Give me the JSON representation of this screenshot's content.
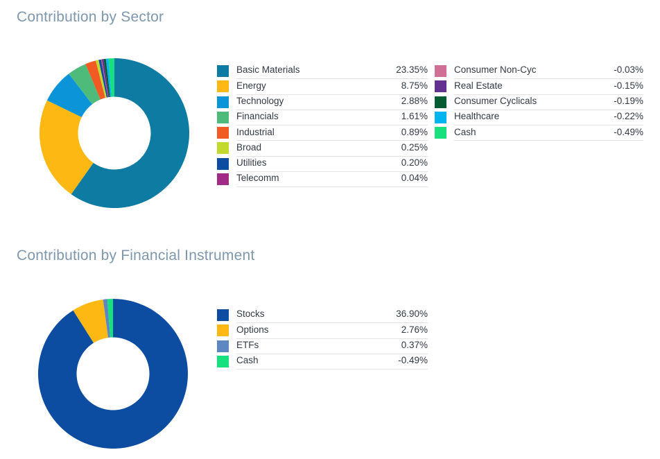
{
  "page": {
    "background": "#ffffff",
    "text_color": "#333a44",
    "title_color": "#7e97ac",
    "divider_color": "#e2e2e2"
  },
  "sections": [
    {
      "title": "Contribution by Sector",
      "chart_data": {
        "type": "pie",
        "variant": "donut",
        "title": "Contribution by Sector",
        "legend_position": "right",
        "slice_sizing": "absolute-value, clockwise from top",
        "labels": [
          "Basic Materials",
          "Energy",
          "Technology",
          "Financials",
          "Industrial",
          "Broad",
          "Utilities",
          "Telecomm",
          "Consumer Non-Cyc",
          "Real Estate",
          "Consumer Cyclicals",
          "Healthcare",
          "Cash"
        ],
        "values": [
          23.35,
          8.75,
          2.88,
          1.61,
          0.89,
          0.25,
          0.2,
          0.04,
          -0.03,
          -0.15,
          -0.19,
          -0.22,
          -0.49
        ],
        "colors": [
          "#0e7ba3",
          "#fdb813",
          "#0b95d8",
          "#4fbb7b",
          "#f15a22",
          "#c4d92e",
          "#0c4da2",
          "#a02c85",
          "#d06f96",
          "#613090",
          "#055c32",
          "#00b5ef",
          "#17e17e"
        ]
      },
      "legend_columns": [
        [
          {
            "label": "Basic Materials",
            "value": "23.35%",
            "color": "#0e7ba3"
          },
          {
            "label": "Energy",
            "value": "8.75%",
            "color": "#fdb813"
          },
          {
            "label": "Technology",
            "value": "2.88%",
            "color": "#0b95d8"
          },
          {
            "label": "Financials",
            "value": "1.61%",
            "color": "#4fbb7b"
          },
          {
            "label": "Industrial",
            "value": "0.89%",
            "color": "#f15a22"
          },
          {
            "label": "Broad",
            "value": "0.25%",
            "color": "#c4d92e"
          },
          {
            "label": "Utilities",
            "value": "0.20%",
            "color": "#0c4da2"
          },
          {
            "label": "Telecomm",
            "value": "0.04%",
            "color": "#a02c85"
          }
        ],
        [
          {
            "label": "Consumer Non-Cyc",
            "value": "-0.03%",
            "color": "#d06f96"
          },
          {
            "label": "Real Estate",
            "value": "-0.15%",
            "color": "#613090"
          },
          {
            "label": "Consumer Cyclicals",
            "value": "-0.19%",
            "color": "#055c32"
          },
          {
            "label": "Healthcare",
            "value": "-0.22%",
            "color": "#00b5ef"
          },
          {
            "label": "Cash",
            "value": "-0.49%",
            "color": "#17e17e"
          }
        ]
      ]
    },
    {
      "title": "Contribution by Financial Instrument",
      "chart_data": {
        "type": "pie",
        "variant": "donut",
        "title": "Contribution by Financial Instrument",
        "legend_position": "right",
        "slice_sizing": "absolute-value, clockwise from top",
        "labels": [
          "Stocks",
          "Options",
          "ETFs",
          "Cash"
        ],
        "values": [
          36.9,
          2.76,
          0.37,
          -0.49
        ],
        "colors": [
          "#0c4da2",
          "#fdb813",
          "#5d87c1",
          "#17e17e"
        ]
      },
      "legend_columns": [
        [
          {
            "label": "Stocks",
            "value": "36.90%",
            "color": "#0c4da2"
          },
          {
            "label": "Options",
            "value": "2.76%",
            "color": "#fdb813"
          },
          {
            "label": "ETFs",
            "value": "0.37%",
            "color": "#5d87c1"
          },
          {
            "label": "Cash",
            "value": "-0.49%",
            "color": "#17e17e"
          }
        ]
      ]
    }
  ],
  "geometry": {
    "donut_outer_radius": 108,
    "donut_inner_radius": 52.5
  }
}
